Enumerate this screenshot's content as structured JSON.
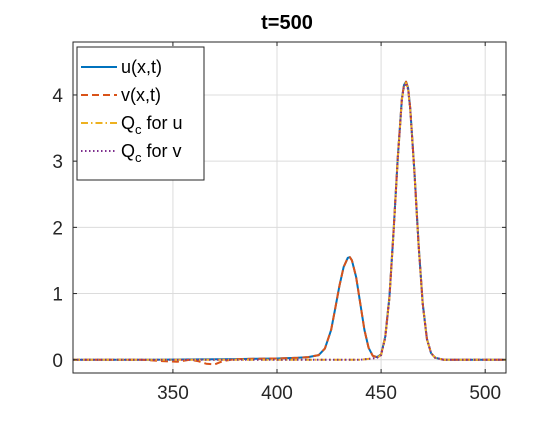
{
  "chart_data": {
    "type": "line",
    "title": "t=500",
    "xlabel": "",
    "ylabel": "",
    "xlim": [
      302,
      510
    ],
    "ylim": [
      -0.2,
      4.8
    ],
    "xticks": [
      350,
      400,
      450,
      500
    ],
    "yticks": [
      0,
      1,
      2,
      3,
      4
    ],
    "grid": true,
    "legend_position": "top-left",
    "legend_entries": [
      {
        "label_main": "u(x,t)",
        "label_sub": "",
        "label_tail": "",
        "color": "#0072BD",
        "dash": "solid"
      },
      {
        "label_main": "v(x,t)",
        "label_sub": "",
        "label_tail": "",
        "color": "#D95319",
        "dash": "dashed"
      },
      {
        "label_main": "Q",
        "label_sub": "c",
        "label_tail": " for u",
        "color": "#EDB120",
        "dash": "dashdot"
      },
      {
        "label_main": "Q",
        "label_sub": "c",
        "label_tail": " for v",
        "color": "#7E2F8E",
        "dash": "dotted"
      }
    ],
    "series": [
      {
        "name": "u(x,t)",
        "color": "#0072BD",
        "dash": "solid",
        "x": [
          302,
          320,
          340,
          360,
          380,
          390,
          400,
          405,
          410,
          415,
          420,
          423,
          426,
          428,
          430,
          432,
          434,
          435,
          436,
          438,
          440,
          442,
          444,
          446,
          448,
          450,
          452,
          454,
          456,
          458,
          460,
          461,
          462,
          463,
          464,
          466,
          468,
          470,
          472,
          474,
          476,
          480,
          490,
          510
        ],
        "y": [
          0,
          0.0,
          0.0,
          0.005,
          0.01,
          0.015,
          0.02,
          0.025,
          0.03,
          0.04,
          0.07,
          0.17,
          0.45,
          0.78,
          1.12,
          1.4,
          1.54,
          1.55,
          1.5,
          1.25,
          0.85,
          0.45,
          0.18,
          0.06,
          0.04,
          0.08,
          0.35,
          0.95,
          1.95,
          3.05,
          3.95,
          4.15,
          4.2,
          4.1,
          3.8,
          2.85,
          1.75,
          0.85,
          0.32,
          0.1,
          0.03,
          0.0,
          0.0,
          0.0
        ]
      },
      {
        "name": "v(x,t)",
        "color": "#D95319",
        "dash": "dashed",
        "x": [
          302,
          320,
          335,
          345,
          352,
          358,
          362,
          366,
          370,
          374,
          380,
          390,
          400,
          405,
          410,
          415,
          420,
          423,
          426,
          428,
          430,
          432,
          434,
          435,
          436,
          438,
          440,
          442,
          444,
          446,
          448,
          450,
          452,
          454,
          456,
          458,
          460,
          461,
          462,
          463,
          464,
          466,
          468,
          470,
          472,
          474,
          476,
          480,
          490,
          510
        ],
        "y": [
          0,
          0.0,
          0.0,
          -0.02,
          -0.03,
          0.0,
          -0.02,
          -0.06,
          -0.07,
          -0.02,
          0.01,
          0.015,
          0.02,
          0.025,
          0.03,
          0.04,
          0.07,
          0.17,
          0.45,
          0.78,
          1.12,
          1.4,
          1.54,
          1.55,
          1.5,
          1.25,
          0.85,
          0.45,
          0.18,
          0.06,
          0.04,
          0.08,
          0.35,
          0.95,
          1.95,
          3.05,
          3.95,
          4.15,
          4.2,
          4.1,
          3.8,
          2.85,
          1.75,
          0.85,
          0.32,
          0.1,
          0.03,
          0.0,
          0.0,
          0.0
        ]
      },
      {
        "name": "Q_c for u",
        "color": "#EDB120",
        "dash": "dashdot",
        "x": [
          302,
          320,
          340,
          360,
          380,
          400,
          420,
          440,
          446,
          448,
          450,
          452,
          454,
          456,
          458,
          460,
          461,
          462,
          463,
          464,
          466,
          468,
          470,
          472,
          474,
          476,
          480,
          490,
          510
        ],
        "y": [
          0,
          0,
          0,
          0,
          0,
          0,
          0,
          0.0,
          0.02,
          0.03,
          0.07,
          0.33,
          0.93,
          1.93,
          3.03,
          3.93,
          4.13,
          4.18,
          4.08,
          3.78,
          2.83,
          1.73,
          0.83,
          0.31,
          0.1,
          0.03,
          0.0,
          0.0,
          0.0
        ]
      },
      {
        "name": "Q_c for v",
        "color": "#7E2F8E",
        "dash": "dotted",
        "x": [
          302,
          320,
          340,
          360,
          380,
          400,
          420,
          440,
          446,
          448,
          450,
          452,
          454,
          456,
          458,
          460,
          461,
          462,
          463,
          464,
          466,
          468,
          470,
          472,
          474,
          476,
          480,
          490,
          510
        ],
        "y": [
          0,
          0,
          0,
          0,
          0,
          0,
          0,
          0.0,
          0.02,
          0.03,
          0.07,
          0.33,
          0.93,
          1.93,
          3.03,
          3.93,
          4.13,
          4.18,
          4.08,
          3.78,
          2.83,
          1.73,
          0.83,
          0.31,
          0.1,
          0.03,
          0.0,
          0.0,
          0.0
        ]
      }
    ]
  }
}
